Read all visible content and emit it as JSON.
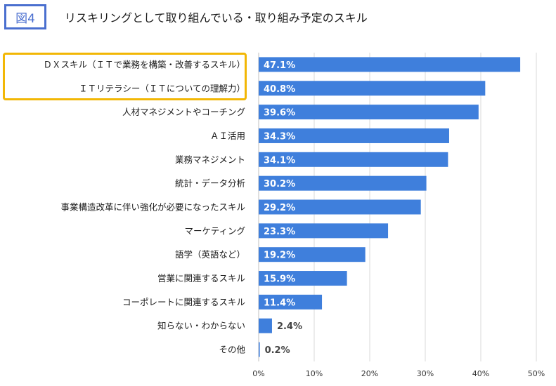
{
  "figure_badge": "図4",
  "title": "リスキリングとして取り組んでいる・取り組み予定のスキル",
  "colors": {
    "bar": "#3f7fdc",
    "highlight": "#f2b705",
    "badge": "#4a6fcf",
    "grid": "#d9d9d9"
  },
  "chart_data": {
    "type": "bar",
    "orientation": "horizontal",
    "categories": [
      "ＤＸスキル（ＩＴで業務を構築・改善するスキル）",
      "ＩＴリテラシー（ＩＴについての理解力）",
      "人材マネジメントやコーチング",
      "ＡＩ活用",
      "業務マネジメント",
      "統計・データ分析",
      "事業構造改革に伴い強化が必要になったスキル",
      "マーケティング",
      "語学（英語など）",
      "営業に関連するスキル",
      "コーポレートに関連するスキル",
      "知らない・わからない",
      "その他"
    ],
    "values": [
      47.1,
      40.8,
      39.6,
      34.3,
      34.1,
      30.2,
      29.2,
      23.3,
      19.2,
      15.9,
      11.4,
      2.4,
      0.2
    ],
    "value_labels": [
      "47.1%",
      "40.8%",
      "39.6%",
      "34.3%",
      "34.1%",
      "30.2%",
      "29.2%",
      "23.3%",
      "19.2%",
      "15.9%",
      "11.4%",
      "2.4%",
      "0.2%"
    ],
    "xlim": [
      0,
      50
    ],
    "xticks": [
      "0%",
      "10%",
      "20%",
      "30%",
      "40%",
      "50%"
    ],
    "highlighted_categories": [
      0,
      1
    ],
    "grid": true
  }
}
